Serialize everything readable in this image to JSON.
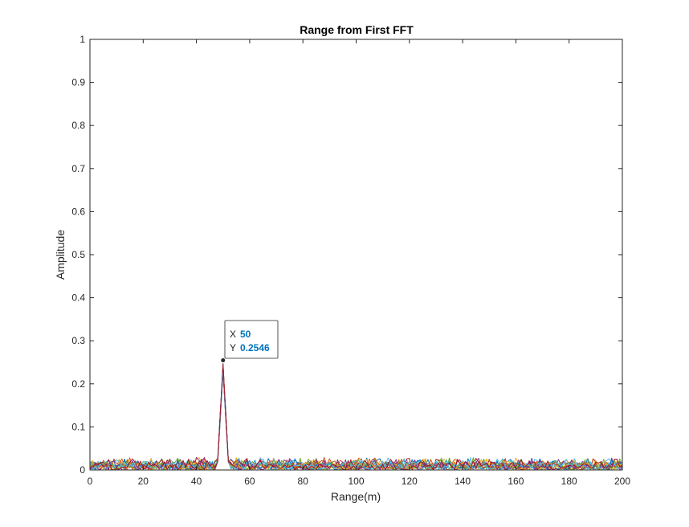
{
  "chart_data": {
    "type": "line",
    "title": "Range from First FFT",
    "xlabel": "Range(m)",
    "ylabel": "Amplitude",
    "xlim": [
      0,
      200
    ],
    "ylim": [
      0,
      1
    ],
    "xticks": [
      0,
      20,
      40,
      60,
      80,
      100,
      120,
      140,
      160,
      180,
      200
    ],
    "yticks": [
      0,
      0.1,
      0.2,
      0.3,
      0.4,
      0.5,
      0.6,
      0.7,
      0.8,
      0.9,
      1
    ],
    "grid": false,
    "legend": "none",
    "series_colors": [
      "#0072bd",
      "#d95319",
      "#edb120",
      "#7e2f8e",
      "#77ac30",
      "#4dbeee",
      "#a2142f"
    ],
    "noise_floor_max": 0.03,
    "peak": {
      "x": 50,
      "y": 0.2546
    },
    "datatip": {
      "x_label": "X",
      "x_value": "50",
      "y_label": "Y",
      "y_value": "0.2546"
    }
  }
}
